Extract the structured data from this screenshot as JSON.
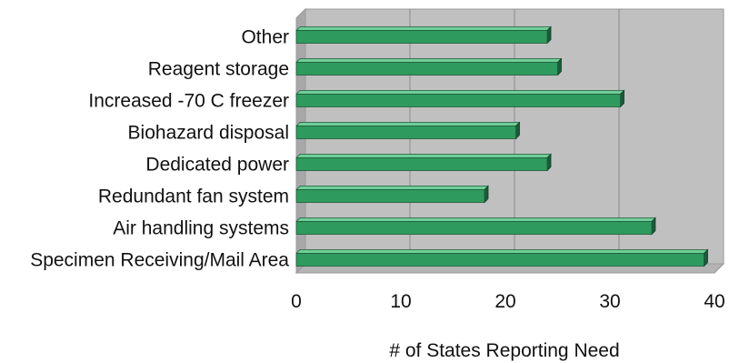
{
  "chart_data": {
    "type": "bar",
    "orientation": "horizontal",
    "title": "",
    "xlabel": "# of States Reporting Need",
    "ylabel": "",
    "xlim": [
      0,
      40
    ],
    "x_ticks": [
      0,
      10,
      20,
      30,
      40
    ],
    "grid": true,
    "legend": "none",
    "categories": [
      "Other",
      "Reagent storage",
      "Increased -70 C freezer",
      "Biohazard disposal",
      "Dedicated power",
      "Redundant fan system",
      "Air handling systems",
      "Specimen Receiving/Mail Area"
    ],
    "values": [
      24,
      25,
      31,
      21,
      24,
      18,
      34,
      39
    ],
    "colors": {
      "bar_front": "#2e9a5e",
      "bar_top": "#6fcf97",
      "bar_side": "#1a5c38",
      "plot_bg": "#c0c0c0",
      "plot_wall": "#a8a8a8",
      "grid": "#8c8c8c"
    }
  }
}
